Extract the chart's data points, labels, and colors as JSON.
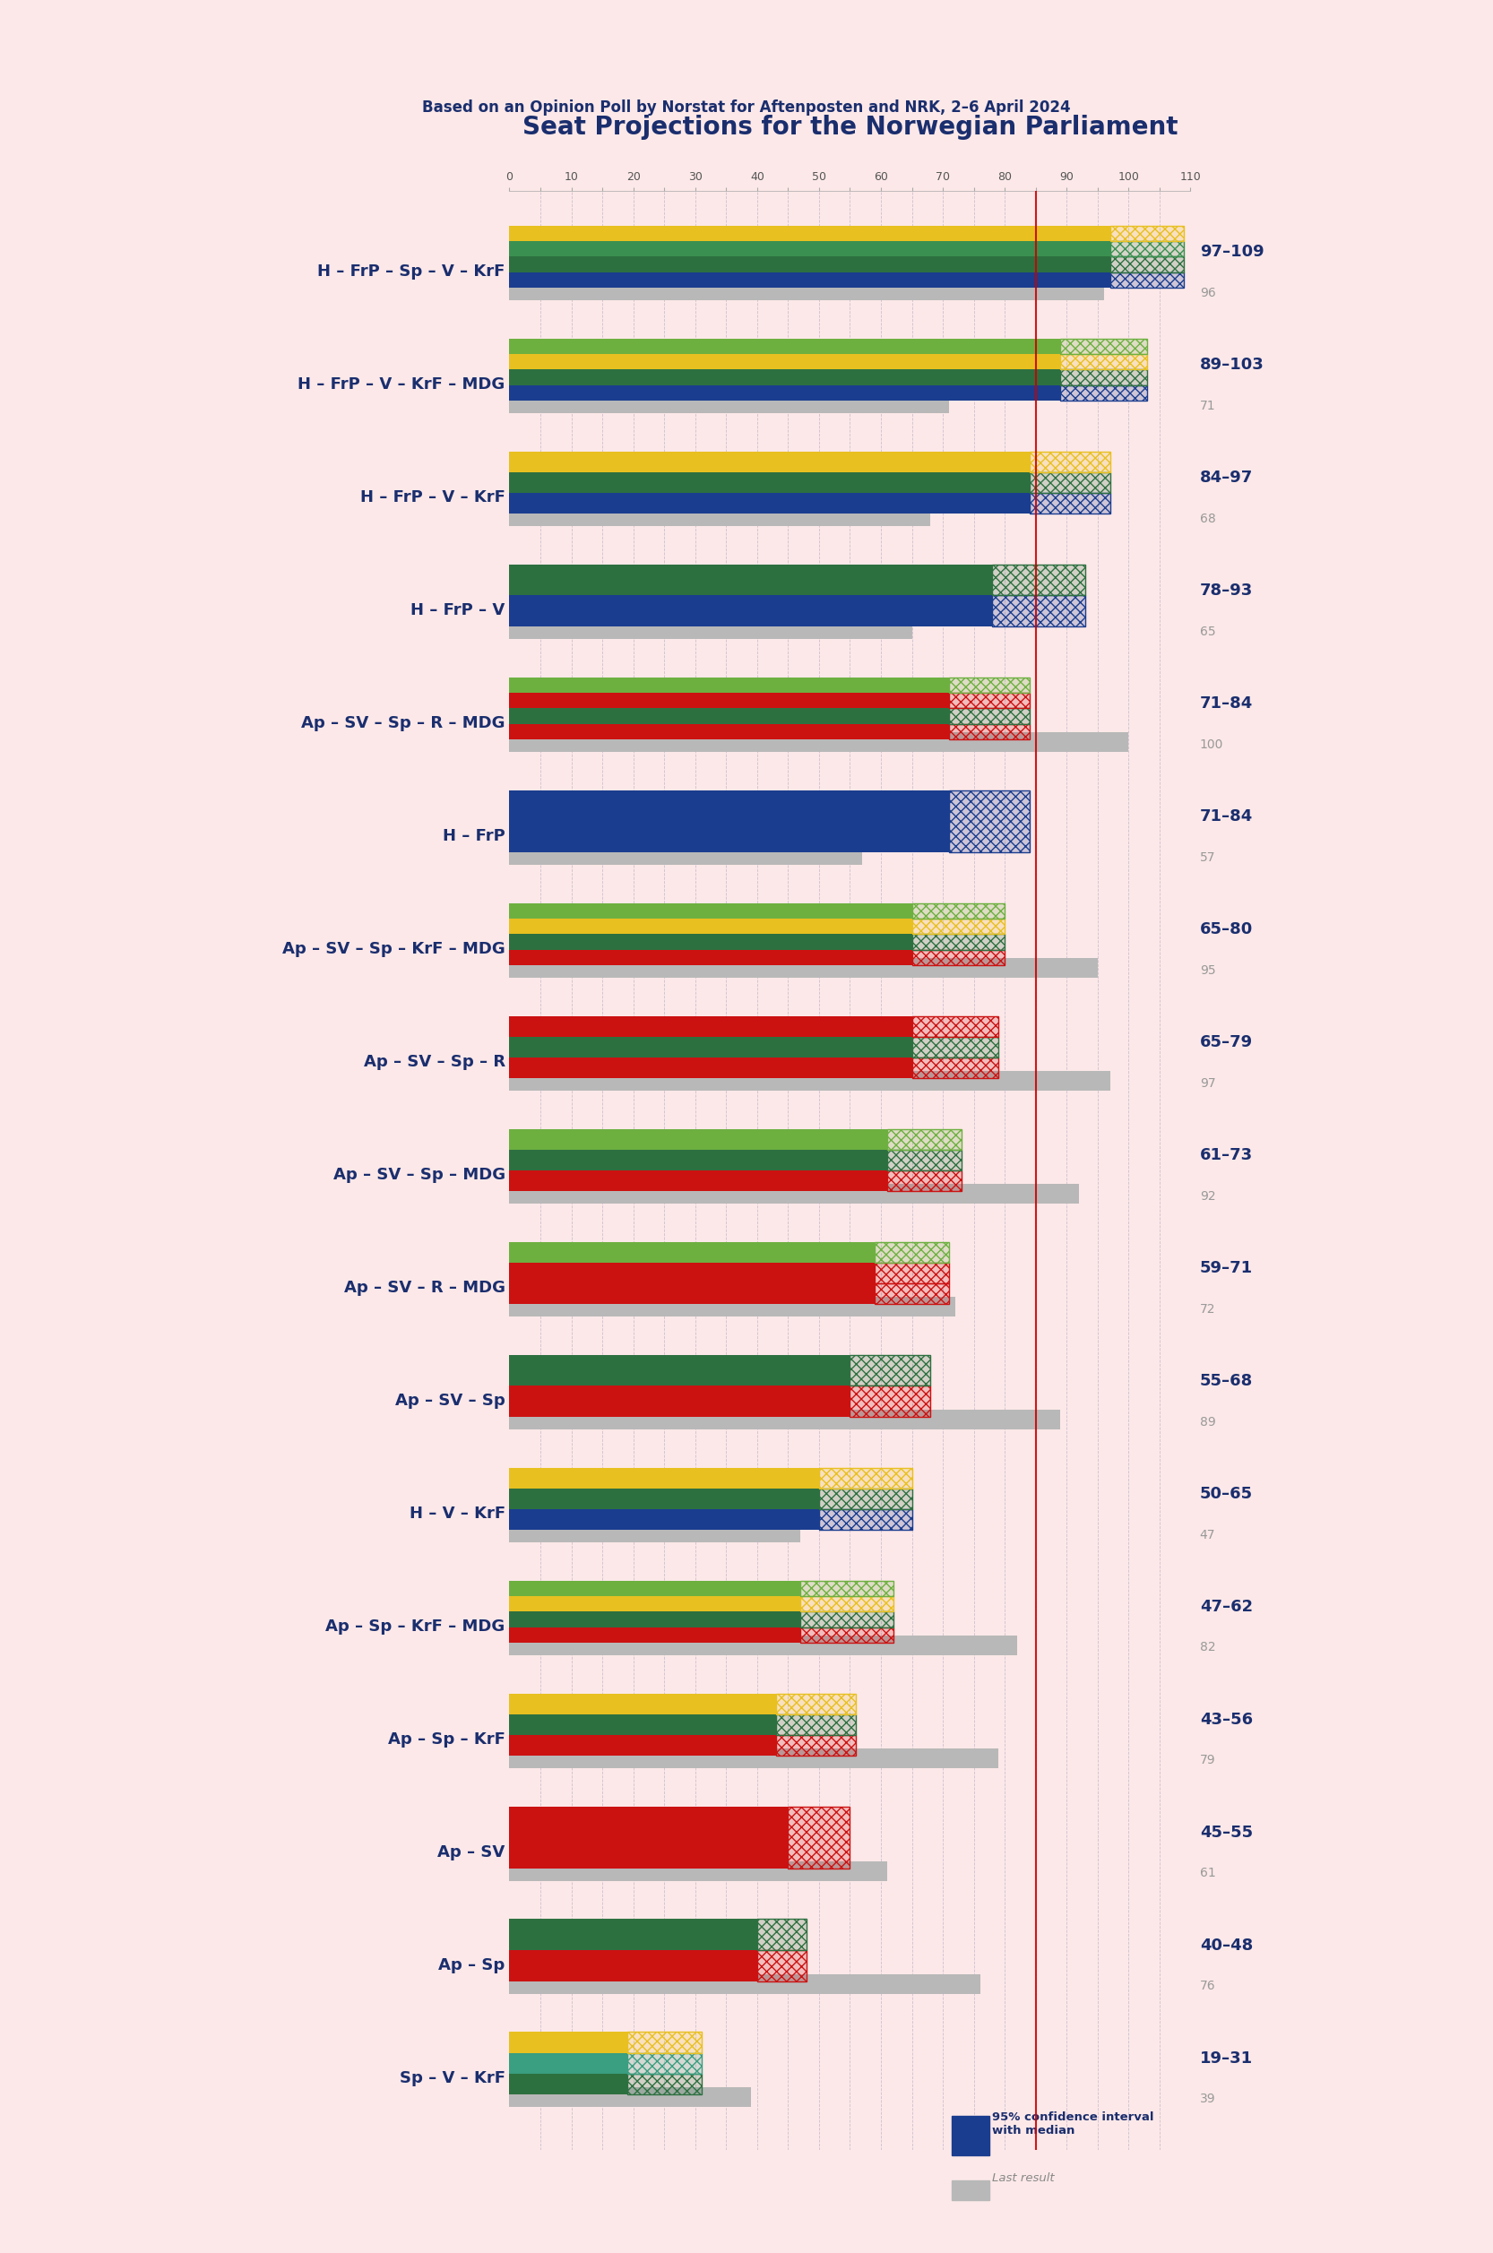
{
  "title": "Seat Projections for the Norwegian Parliament",
  "subtitle": "Based on an Opinion Poll by Norstat for Aftenposten and NRK, 2–6 April 2024",
  "bg_color": "#fce8e8",
  "majority": 85,
  "x_max": 110,
  "x_min": 0,
  "title_color": "#1a2e6e",
  "subtitle_color": "#1a2e6e",
  "majority_color": "#cc0000",
  "coalitions": [
    {
      "label": "H – FrP – Sp – V – KrF",
      "low": 97,
      "high": 109,
      "last": 96,
      "underline": false,
      "stripe_colors": [
        "#1a3d8f",
        "#2d7040",
        "#3a9050",
        "#e8c020"
      ]
    },
    {
      "label": "H – FrP – V – KrF – MDG",
      "low": 89,
      "high": 103,
      "last": 71,
      "underline": false,
      "stripe_colors": [
        "#1a3d8f",
        "#2d7040",
        "#e8c020",
        "#6db040"
      ]
    },
    {
      "label": "H – FrP – V – KrF",
      "low": 84,
      "high": 97,
      "last": 68,
      "underline": false,
      "stripe_colors": [
        "#1a3d8f",
        "#2d7040",
        "#e8c020"
      ]
    },
    {
      "label": "H – FrP – V",
      "low": 78,
      "high": 93,
      "last": 65,
      "underline": false,
      "stripe_colors": [
        "#1a3d8f",
        "#2d7040"
      ]
    },
    {
      "label": "Ap – SV – Sp – R – MDG",
      "low": 71,
      "high": 84,
      "last": 100,
      "underline": false,
      "stripe_colors": [
        "#cc1111",
        "#2d7040",
        "#cc1111",
        "#6db040"
      ]
    },
    {
      "label": "H – FrP",
      "low": 71,
      "high": 84,
      "last": 57,
      "underline": false,
      "stripe_colors": [
        "#1a3d8f"
      ]
    },
    {
      "label": "Ap – SV – Sp – KrF – MDG",
      "low": 65,
      "high": 80,
      "last": 95,
      "underline": false,
      "stripe_colors": [
        "#cc1111",
        "#2d7040",
        "#e8c020",
        "#6db040"
      ]
    },
    {
      "label": "Ap – SV – Sp – R",
      "low": 65,
      "high": 79,
      "last": 97,
      "underline": false,
      "stripe_colors": [
        "#cc1111",
        "#2d7040",
        "#cc1111"
      ]
    },
    {
      "label": "Ap – SV – Sp – MDG",
      "low": 61,
      "high": 73,
      "last": 92,
      "underline": false,
      "stripe_colors": [
        "#cc1111",
        "#2d7040",
        "#6db040"
      ]
    },
    {
      "label": "Ap – SV – R – MDG",
      "low": 59,
      "high": 71,
      "last": 72,
      "underline": false,
      "stripe_colors": [
        "#cc1111",
        "#cc1111",
        "#6db040"
      ]
    },
    {
      "label": "Ap – SV – Sp",
      "low": 55,
      "high": 68,
      "last": 89,
      "underline": false,
      "stripe_colors": [
        "#cc1111",
        "#2d7040"
      ]
    },
    {
      "label": "H – V – KrF",
      "low": 50,
      "high": 65,
      "last": 47,
      "underline": false,
      "stripe_colors": [
        "#1a3d8f",
        "#2d7040",
        "#e8c020"
      ]
    },
    {
      "label": "Ap – Sp – KrF – MDG",
      "low": 47,
      "high": 62,
      "last": 82,
      "underline": false,
      "stripe_colors": [
        "#cc1111",
        "#2d7040",
        "#e8c020",
        "#6db040"
      ]
    },
    {
      "label": "Ap – Sp – KrF",
      "low": 43,
      "high": 56,
      "last": 79,
      "underline": false,
      "stripe_colors": [
        "#cc1111",
        "#2d7040",
        "#e8c020"
      ]
    },
    {
      "label": "Ap – SV",
      "low": 45,
      "high": 55,
      "last": 61,
      "underline": true,
      "stripe_colors": [
        "#cc1111"
      ]
    },
    {
      "label": "Ap – Sp",
      "low": 40,
      "high": 48,
      "last": 76,
      "underline": false,
      "stripe_colors": [
        "#cc1111",
        "#2d7040"
      ]
    },
    {
      "label": "Sp – V – KrF",
      "low": 19,
      "high": 31,
      "last": 39,
      "underline": false,
      "stripe_colors": [
        "#2d7040",
        "#3a9e80",
        "#e8c020"
      ]
    }
  ]
}
